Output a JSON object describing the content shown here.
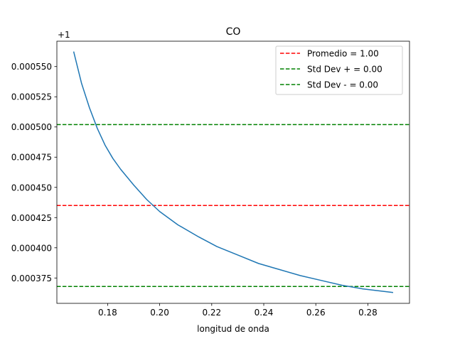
{
  "chart_data": {
    "type": "line",
    "title": "CO",
    "xlabel": "longitud de onda",
    "ylabel": "",
    "y_offset_label": "+1",
    "xlim": [
      0.1605,
      0.296
    ],
    "ylim": [
      0.000354,
      0.000571
    ],
    "xticks": [
      0.18,
      0.2,
      0.22,
      0.24,
      0.26,
      0.28
    ],
    "xtick_labels": [
      "0.18",
      "0.20",
      "0.22",
      "0.24",
      "0.26",
      "0.28"
    ],
    "yticks": [
      0.000375,
      0.0004,
      0.000425,
      0.00045,
      0.000475,
      0.0005,
      0.000525,
      0.00055
    ],
    "ytick_labels": [
      "0.000375",
      "0.000400",
      "0.000425",
      "0.000450",
      "0.000475",
      "0.000500",
      "0.000525",
      "0.000550"
    ],
    "grid": false,
    "legend_position": "top-right",
    "series": [
      {
        "color": "#1f77b4",
        "style": "solid",
        "x": [
          0.167,
          0.17,
          0.173,
          0.176,
          0.179,
          0.182,
          0.185,
          0.19,
          0.195,
          0.2,
          0.207,
          0.215,
          0.222,
          0.23,
          0.238,
          0.246,
          0.254,
          0.262,
          0.27,
          0.278,
          0.2895
        ],
        "y": [
          0.000562,
          0.000536,
          0.000516,
          0.000499,
          0.000485,
          0.000474,
          0.000465,
          0.000452,
          0.00044,
          0.00043,
          0.000419,
          0.000409,
          0.000401,
          0.000394,
          0.000387,
          0.000382,
          0.000377,
          0.000373,
          0.000369,
          0.000366,
          0.000363
        ]
      }
    ],
    "hlines": [
      {
        "label": "Promedio = 1.00",
        "y": 0.000435,
        "color": "#ff0000",
        "style": "dashed"
      },
      {
        "label": "Std Dev + = 0.00",
        "y": 0.000502,
        "color": "#008000",
        "style": "dashed"
      },
      {
        "label": "Std Dev - = 0.00",
        "y": 0.000368,
        "color": "#008000",
        "style": "dashed"
      }
    ]
  }
}
